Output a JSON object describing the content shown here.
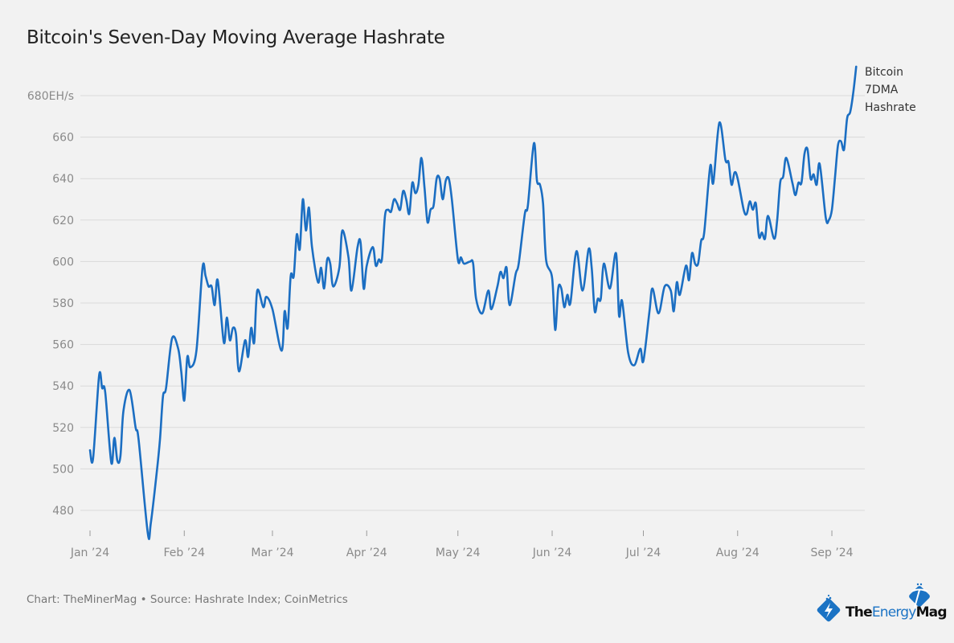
{
  "title": "Bitcoin's Seven-Day Moving Average Hashrate",
  "footer": "Chart: TheMinerMag • Source: Hashrate Index; CoinMetrics",
  "logo": {
    "text_parts": [
      "The",
      "Energy",
      "Mag"
    ],
    "icons": [
      "lightning-diamond-icon",
      "pickaxe-diamond-icon"
    ]
  },
  "colors": {
    "line": "#1b6ec2",
    "grid": "#d9d9d9",
    "background": "#f2f2f2",
    "logo_blue": "#1b73c4"
  },
  "chart_data": {
    "type": "line",
    "title": "Bitcoin's Seven-Day Moving Average Hashrate",
    "xlabel": "",
    "ylabel": "",
    "y_unit": "EH/s",
    "ylim": [
      470,
      695
    ],
    "yticks": [
      480,
      500,
      520,
      540,
      560,
      580,
      600,
      620,
      640,
      660,
      680
    ],
    "ytick_labels": [
      "480",
      "500",
      "520",
      "540",
      "560",
      "580",
      "600",
      "620",
      "640",
      "660",
      "680EH/s"
    ],
    "xticks": [
      "2024-01-01",
      "2024-02-01",
      "2024-03-01",
      "2024-04-01",
      "2024-05-01",
      "2024-06-01",
      "2024-07-01",
      "2024-08-01",
      "2024-09-01"
    ],
    "xtick_labels": [
      "Jan ’24",
      "Feb ’24",
      "Mar ’24",
      "Apr ’24",
      "May ’24",
      "Jun ’24",
      "Jul ’24",
      "Aug ’24",
      "Sep ’24"
    ],
    "grid": "horizontal",
    "legend_placement": "right-end-label",
    "series": [
      {
        "name": "Bitcoin 7DMA Hashrate",
        "label_lines": [
          "Bitcoin",
          "7DMA",
          "Hashrate"
        ],
        "points": [
          [
            "2024-01-01",
            509
          ],
          [
            "2024-01-02",
            505
          ],
          [
            "2024-01-04",
            545
          ],
          [
            "2024-01-05",
            539
          ],
          [
            "2024-01-06",
            537
          ],
          [
            "2024-01-08",
            503
          ],
          [
            "2024-01-09",
            515
          ],
          [
            "2024-01-10",
            504
          ],
          [
            "2024-01-11",
            506
          ],
          [
            "2024-01-12",
            528
          ],
          [
            "2024-01-14",
            538
          ],
          [
            "2024-01-16",
            520
          ],
          [
            "2024-01-17",
            514
          ],
          [
            "2024-01-20",
            469
          ],
          [
            "2024-01-21",
            474
          ],
          [
            "2024-01-23",
            499
          ],
          [
            "2024-01-24",
            514
          ],
          [
            "2024-01-25",
            535
          ],
          [
            "2024-01-26",
            539
          ],
          [
            "2024-01-28",
            563
          ],
          [
            "2024-01-30",
            558
          ],
          [
            "2024-01-31",
            547
          ],
          [
            "2024-02-01",
            533
          ],
          [
            "2024-02-02",
            554
          ],
          [
            "2024-02-03",
            549
          ],
          [
            "2024-02-05",
            557
          ],
          [
            "2024-02-07",
            597
          ],
          [
            "2024-02-08",
            593
          ],
          [
            "2024-02-09",
            588
          ],
          [
            "2024-02-10",
            588
          ],
          [
            "2024-02-11",
            579
          ],
          [
            "2024-02-12",
            591
          ],
          [
            "2024-02-14",
            561
          ],
          [
            "2024-02-15",
            573
          ],
          [
            "2024-02-16",
            562
          ],
          [
            "2024-02-17",
            568
          ],
          [
            "2024-02-18",
            565
          ],
          [
            "2024-02-19",
            547
          ],
          [
            "2024-02-21",
            562
          ],
          [
            "2024-02-22",
            554
          ],
          [
            "2024-02-23",
            568
          ],
          [
            "2024-02-24",
            561
          ],
          [
            "2024-02-25",
            586
          ],
          [
            "2024-02-27",
            578
          ],
          [
            "2024-02-28",
            583
          ],
          [
            "2024-03-01",
            577
          ],
          [
            "2024-03-04",
            557
          ],
          [
            "2024-03-05",
            576
          ],
          [
            "2024-03-06",
            568
          ],
          [
            "2024-03-07",
            593
          ],
          [
            "2024-03-08",
            593
          ],
          [
            "2024-03-09",
            613
          ],
          [
            "2024-03-10",
            606
          ],
          [
            "2024-03-11",
            630
          ],
          [
            "2024-03-12",
            615
          ],
          [
            "2024-03-13",
            626
          ],
          [
            "2024-03-14",
            607
          ],
          [
            "2024-03-16",
            590
          ],
          [
            "2024-03-17",
            597
          ],
          [
            "2024-03-18",
            587
          ],
          [
            "2024-03-19",
            601
          ],
          [
            "2024-03-20",
            599
          ],
          [
            "2024-03-21",
            588
          ],
          [
            "2024-03-23",
            597
          ],
          [
            "2024-03-24",
            615
          ],
          [
            "2024-03-26",
            602
          ],
          [
            "2024-03-27",
            586
          ],
          [
            "2024-03-29",
            607
          ],
          [
            "2024-03-30",
            609
          ],
          [
            "2024-03-31",
            587
          ],
          [
            "2024-04-01",
            598
          ],
          [
            "2024-04-03",
            607
          ],
          [
            "2024-04-04",
            598
          ],
          [
            "2024-04-05",
            601
          ],
          [
            "2024-04-06",
            601
          ],
          [
            "2024-04-07",
            622
          ],
          [
            "2024-04-08",
            625
          ],
          [
            "2024-04-09",
            624
          ],
          [
            "2024-04-10",
            630
          ],
          [
            "2024-04-11",
            628
          ],
          [
            "2024-04-12",
            625
          ],
          [
            "2024-04-13",
            634
          ],
          [
            "2024-04-14",
            630
          ],
          [
            "2024-04-15",
            623
          ],
          [
            "2024-04-16",
            638
          ],
          [
            "2024-04-17",
            633
          ],
          [
            "2024-04-18",
            637
          ],
          [
            "2024-04-19",
            650
          ],
          [
            "2024-04-20",
            636
          ],
          [
            "2024-04-21",
            619
          ],
          [
            "2024-04-22",
            625
          ],
          [
            "2024-04-23",
            627
          ],
          [
            "2024-04-24",
            640
          ],
          [
            "2024-04-25",
            640
          ],
          [
            "2024-04-26",
            630
          ],
          [
            "2024-04-27",
            639
          ],
          [
            "2024-04-28",
            640
          ],
          [
            "2024-04-29",
            630
          ],
          [
            "2024-05-01",
            601
          ],
          [
            "2024-05-02",
            602
          ],
          [
            "2024-05-03",
            599
          ],
          [
            "2024-05-05",
            600
          ],
          [
            "2024-05-06",
            599
          ],
          [
            "2024-05-07",
            582
          ],
          [
            "2024-05-09",
            575
          ],
          [
            "2024-05-11",
            586
          ],
          [
            "2024-05-12",
            577
          ],
          [
            "2024-05-14",
            588
          ],
          [
            "2024-05-15",
            595
          ],
          [
            "2024-05-16",
            592
          ],
          [
            "2024-05-17",
            597
          ],
          [
            "2024-05-18",
            579
          ],
          [
            "2024-05-20",
            594
          ],
          [
            "2024-05-21",
            599
          ],
          [
            "2024-05-23",
            623
          ],
          [
            "2024-05-24",
            627
          ],
          [
            "2024-05-26",
            657
          ],
          [
            "2024-05-27",
            639
          ],
          [
            "2024-05-28",
            637
          ],
          [
            "2024-05-29",
            628
          ],
          [
            "2024-05-30",
            601
          ],
          [
            "2024-06-01",
            592
          ],
          [
            "2024-06-02",
            567
          ],
          [
            "2024-06-03",
            587
          ],
          [
            "2024-06-04",
            587
          ],
          [
            "2024-06-05",
            578
          ],
          [
            "2024-06-06",
            584
          ],
          [
            "2024-06-07",
            580
          ],
          [
            "2024-06-09",
            605
          ],
          [
            "2024-06-11",
            586
          ],
          [
            "2024-06-13",
            606
          ],
          [
            "2024-06-14",
            597
          ],
          [
            "2024-06-15",
            576
          ],
          [
            "2024-06-16",
            582
          ],
          [
            "2024-06-17",
            582
          ],
          [
            "2024-06-18",
            599
          ],
          [
            "2024-06-20",
            587
          ],
          [
            "2024-06-22",
            604
          ],
          [
            "2024-06-23",
            574
          ],
          [
            "2024-06-24",
            581
          ],
          [
            "2024-06-26",
            556
          ],
          [
            "2024-06-28",
            550
          ],
          [
            "2024-06-30",
            558
          ],
          [
            "2024-07-01",
            552
          ],
          [
            "2024-07-03",
            576
          ],
          [
            "2024-07-04",
            587
          ],
          [
            "2024-07-06",
            575
          ],
          [
            "2024-07-08",
            588
          ],
          [
            "2024-07-10",
            586
          ],
          [
            "2024-07-11",
            576
          ],
          [
            "2024-07-12",
            590
          ],
          [
            "2024-07-13",
            584
          ],
          [
            "2024-07-15",
            598
          ],
          [
            "2024-07-16",
            591
          ],
          [
            "2024-07-17",
            604
          ],
          [
            "2024-07-18",
            599
          ],
          [
            "2024-07-19",
            599
          ],
          [
            "2024-07-20",
            610
          ],
          [
            "2024-07-21",
            614
          ],
          [
            "2024-07-23",
            646
          ],
          [
            "2024-07-24",
            638
          ],
          [
            "2024-07-26",
            667
          ],
          [
            "2024-07-28",
            649
          ],
          [
            "2024-07-29",
            648
          ],
          [
            "2024-07-30",
            637
          ],
          [
            "2024-07-31",
            643
          ],
          [
            "2024-08-01",
            640
          ],
          [
            "2024-08-03",
            625
          ],
          [
            "2024-08-04",
            623
          ],
          [
            "2024-08-05",
            629
          ],
          [
            "2024-08-06",
            625
          ],
          [
            "2024-08-07",
            628
          ],
          [
            "2024-08-08",
            612
          ],
          [
            "2024-08-09",
            614
          ],
          [
            "2024-08-10",
            611
          ],
          [
            "2024-08-11",
            622
          ],
          [
            "2024-08-13",
            611
          ],
          [
            "2024-08-14",
            620
          ],
          [
            "2024-08-15",
            638
          ],
          [
            "2024-08-16",
            641
          ],
          [
            "2024-08-17",
            650
          ],
          [
            "2024-08-19",
            638
          ],
          [
            "2024-08-20",
            632
          ],
          [
            "2024-08-21",
            638
          ],
          [
            "2024-08-22",
            638
          ],
          [
            "2024-08-23",
            652
          ],
          [
            "2024-08-24",
            654
          ],
          [
            "2024-08-25",
            640
          ],
          [
            "2024-08-26",
            642
          ],
          [
            "2024-08-27",
            637
          ],
          [
            "2024-08-28",
            647
          ],
          [
            "2024-08-30",
            621
          ],
          [
            "2024-08-31",
            620
          ],
          [
            "2024-09-01",
            625
          ],
          [
            "2024-09-02",
            640
          ],
          [
            "2024-09-03",
            656
          ],
          [
            "2024-09-04",
            658
          ],
          [
            "2024-09-05",
            654
          ],
          [
            "2024-09-06",
            669
          ],
          [
            "2024-09-07",
            672
          ],
          [
            "2024-09-08",
            681
          ],
          [
            "2024-09-09",
            694
          ]
        ]
      }
    ]
  }
}
